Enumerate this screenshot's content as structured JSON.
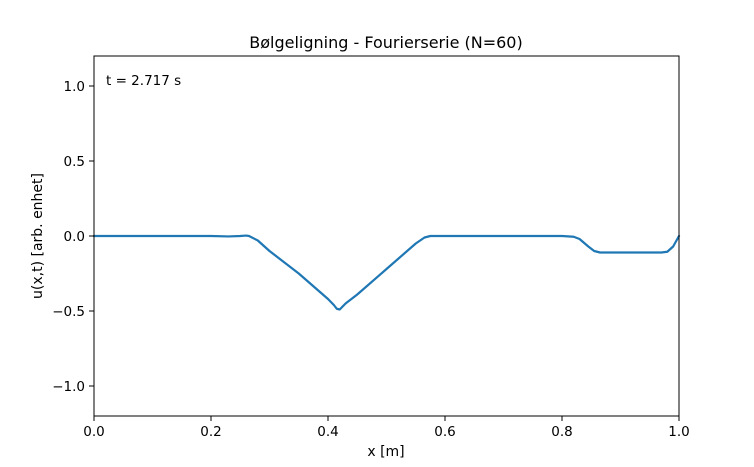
{
  "chart_data": {
    "type": "line",
    "title": "Bølgeligning - Fourierserie (N=60)",
    "xlabel": "x [m]",
    "ylabel": "u(x,t) [arb. enhet]",
    "annotation": "t = 2.717 s",
    "xlim": [
      0.0,
      1.0
    ],
    "ylim": [
      -1.2,
      1.2
    ],
    "x_ticks": [
      {
        "value": 0.0,
        "label": "0.0"
      },
      {
        "value": 0.2,
        "label": "0.2"
      },
      {
        "value": 0.4,
        "label": "0.4"
      },
      {
        "value": 0.6,
        "label": "0.6"
      },
      {
        "value": 0.8,
        "label": "0.8"
      },
      {
        "value": 1.0,
        "label": "1.0"
      }
    ],
    "y_ticks": [
      {
        "value": -1.0,
        "label": "−1.0"
      },
      {
        "value": -0.5,
        "label": "−0.5"
      },
      {
        "value": 0.0,
        "label": "0.0"
      },
      {
        "value": 0.5,
        "label": "0.5"
      },
      {
        "value": 1.0,
        "label": "1.0"
      }
    ],
    "grid": false,
    "color": "#1f77b4",
    "series": [
      {
        "x": [
          0.0,
          0.05,
          0.1,
          0.15,
          0.2,
          0.23,
          0.25,
          0.26,
          0.265,
          0.28,
          0.3,
          0.35,
          0.4,
          0.41,
          0.415,
          0.42,
          0.43,
          0.45,
          0.5,
          0.55,
          0.565,
          0.575,
          0.59,
          0.6,
          0.7,
          0.8,
          0.82,
          0.83,
          0.845,
          0.855,
          0.865,
          0.875,
          0.9,
          0.95,
          0.96,
          0.97,
          0.98,
          0.99,
          1.0
        ],
        "y": [
          0.0,
          0.0,
          0.0,
          0.0,
          0.0,
          -0.003,
          0.0,
          0.003,
          0.0,
          -0.03,
          -0.1,
          -0.25,
          -0.42,
          -0.46,
          -0.485,
          -0.49,
          -0.45,
          -0.39,
          -0.22,
          -0.05,
          -0.01,
          0.0,
          0.0,
          0.0,
          0.0,
          0.0,
          -0.005,
          -0.02,
          -0.07,
          -0.1,
          -0.11,
          -0.11,
          -0.11,
          -0.11,
          -0.11,
          -0.11,
          -0.105,
          -0.07,
          0.0
        ]
      }
    ]
  }
}
